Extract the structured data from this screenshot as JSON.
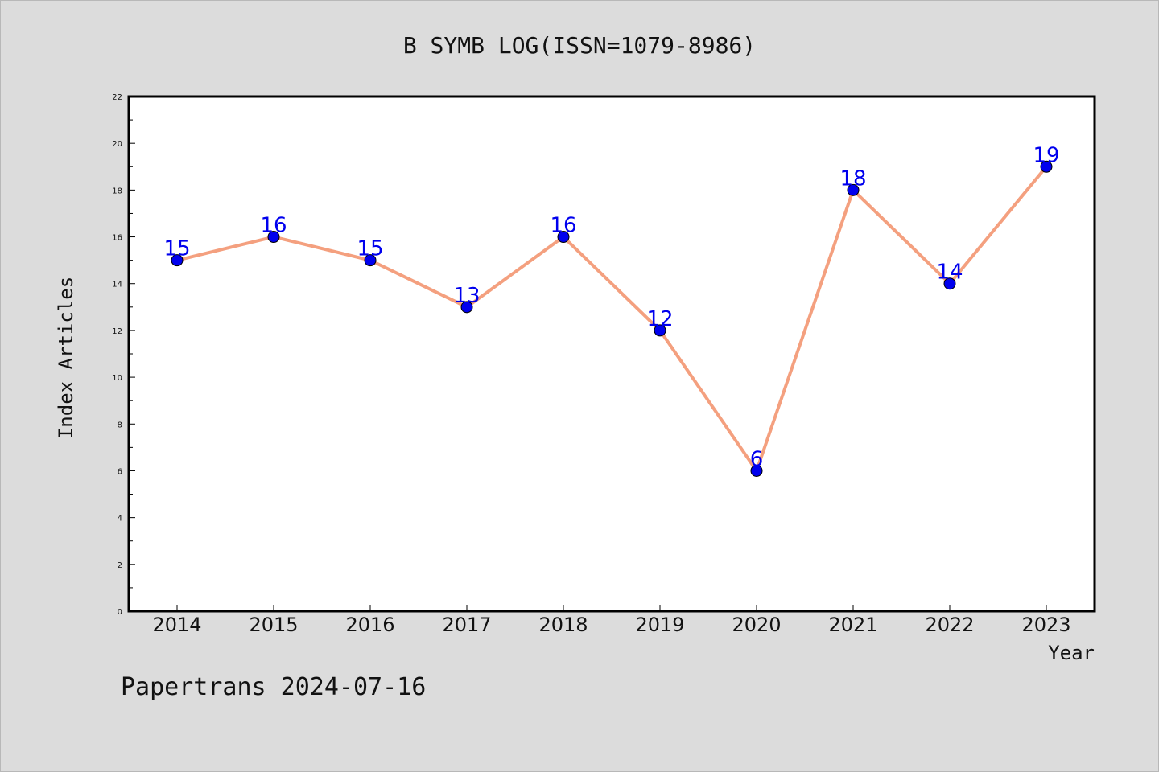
{
  "chart_data": {
    "type": "line",
    "title": "B SYMB LOG(ISSN=1079-8986)",
    "xlabel": "Year",
    "ylabel": "Index Articles",
    "categories": [
      "2014",
      "2015",
      "2016",
      "2017",
      "2018",
      "2019",
      "2020",
      "2021",
      "2022",
      "2023"
    ],
    "series": [
      {
        "values": [
          15,
          16,
          15,
          13,
          16,
          12,
          6,
          18,
          14,
          19
        ]
      }
    ],
    "ylim": [
      0,
      22
    ],
    "yticks": [
      0,
      2,
      4,
      6,
      8,
      10,
      12,
      14,
      16,
      18,
      20,
      22
    ],
    "grid": false,
    "legend": "none",
    "colors": {
      "line": "#f4a07f",
      "marker": "#0000ee",
      "data_label": "#0000ee",
      "plot_background": "#ffffff",
      "page_background": "#dcdcdc"
    },
    "footer": "Papertrans 2024-07-16"
  }
}
